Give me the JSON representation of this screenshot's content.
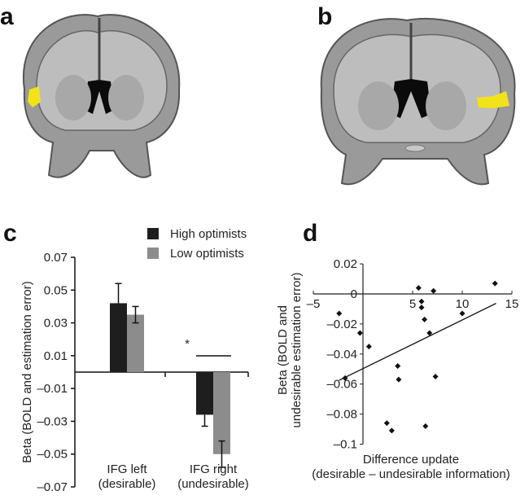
{
  "panels": {
    "a": "a",
    "b": "b",
    "c": "c",
    "d": "d"
  },
  "chart_data": [
    {
      "panel": "c",
      "type": "bar",
      "categories": [
        "IFG left\n(desirable)",
        "IFG right\n(undesirable)"
      ],
      "category_lines": [
        [
          "IFG left",
          "(desirable)"
        ],
        [
          "IFG right",
          "(undesirable)"
        ]
      ],
      "series": [
        {
          "name": "High optimists",
          "color": "#1e1e1e",
          "values": [
            0.042,
            -0.026
          ],
          "error_ends": [
            0.054,
            -0.033
          ]
        },
        {
          "name": "Low optimists",
          "color": "#8c8c8c",
          "values": [
            0.035,
            -0.05
          ],
          "error_ranges": [
            [
              0.03,
              0.04
            ],
            [
              -0.058,
              -0.042
            ]
          ]
        }
      ],
      "ylabel": "Beta (BOLD and estimation error)",
      "ylim": [
        -0.07,
        0.07
      ],
      "yticks": [
        "0.07",
        "0.05",
        "0.03",
        "0.01",
        "–0.01",
        "–0.03",
        "–0.05",
        "–0.07"
      ],
      "ytick_values": [
        0.07,
        0.05,
        0.03,
        0.01,
        -0.01,
        -0.03,
        -0.05,
        -0.07
      ],
      "annotation": "*",
      "legend": "top-right"
    },
    {
      "panel": "d",
      "type": "scatter",
      "xlabel_lines": [
        "Difference update",
        "(desirable – undesirable information)"
      ],
      "ylabel_lines": [
        "Beta (BOLD and",
        "undesirable estimation error)"
      ],
      "xlim": [
        -5,
        15
      ],
      "ylim": [
        -0.1,
        0.02
      ],
      "xticks": [
        "–5",
        "0",
        "5",
        "10",
        "15"
      ],
      "xtick_values": [
        -5,
        0,
        5,
        10,
        15
      ],
      "yticks": [
        "0.02",
        "0",
        "–0.02",
        "–0.04",
        "–0.06",
        "–0.08",
        "–0.1"
      ],
      "ytick_values": [
        0.02,
        0,
        -0.02,
        -0.04,
        -0.06,
        -0.08,
        -0.1
      ],
      "points": [
        [
          -2.4,
          -0.013
        ],
        [
          -0.3,
          -0.026
        ],
        [
          0.6,
          -0.035
        ],
        [
          -1.8,
          -0.056
        ],
        [
          2.4,
          -0.086
        ],
        [
          2.9,
          -0.091
        ],
        [
          3.5,
          -0.048
        ],
        [
          3.6,
          -0.057
        ],
        [
          5.6,
          0.004
        ],
        [
          5.9,
          -0.005
        ],
        [
          5.9,
          -0.009
        ],
        [
          6.2,
          -0.017
        ],
        [
          6.7,
          -0.026
        ],
        [
          6.3,
          -0.088
        ],
        [
          7.1,
          0.002
        ],
        [
          7.3,
          -0.055
        ],
        [
          10.0,
          -0.013
        ],
        [
          13.3,
          0.007
        ]
      ],
      "fit_line": {
        "x": [
          -2.4,
          13.4
        ],
        "y": [
          -0.0575,
          -0.0063
        ]
      }
    }
  ],
  "brain_colors": {
    "highlight": "#f2e21a",
    "tissue": "#8a8a8a"
  }
}
